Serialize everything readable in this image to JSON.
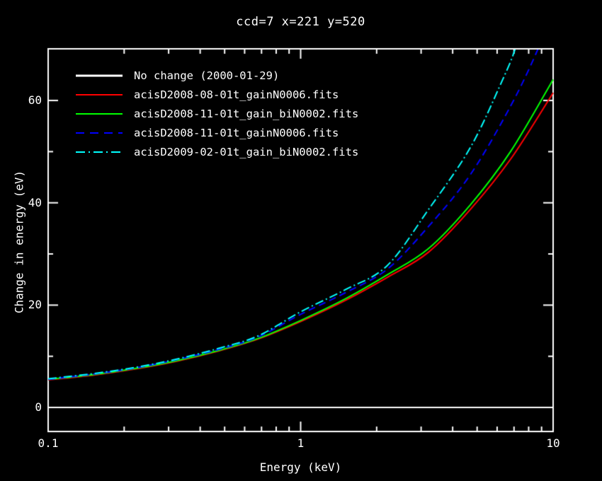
{
  "chart_data": {
    "type": "line",
    "title": "ccd=7 x=221 y=520",
    "xlabel": "Energy (keV)",
    "ylabel": "Change in energy (eV)",
    "xscale": "log",
    "xlim": [
      0.1,
      10
    ],
    "ylim": [
      -4.7,
      70.1
    ],
    "grid": false,
    "legend_position": "top-left-inside",
    "background_color": "#000000",
    "axis_color": "#ffffff",
    "xticks": [
      {
        "value": 0.1,
        "label": "0.1"
      },
      {
        "value": 1,
        "label": "1"
      },
      {
        "value": 10,
        "label": "10"
      }
    ],
    "xminor": [
      0.2,
      0.3,
      0.4,
      0.5,
      0.6,
      0.7,
      0.8,
      0.9,
      2,
      3,
      4,
      5,
      6,
      7,
      8,
      9
    ],
    "yticks": [
      {
        "value": 0,
        "label": "0"
      },
      {
        "value": 20,
        "label": "20"
      },
      {
        "value": 40,
        "label": "40"
      },
      {
        "value": 60,
        "label": "60"
      }
    ],
    "yminor": [
      10,
      30,
      50
    ],
    "series": [
      {
        "name": "No change (2000-01-29)",
        "color": "#ffffff",
        "style": "solid",
        "legend_line_width": 3,
        "x": [
          0.1,
          10
        ],
        "y": [
          0,
          0
        ]
      },
      {
        "name": "acisD2008-08-01t_gainN0006.fits",
        "color": "#ff0000",
        "style": "solid",
        "legend_line_width": 2,
        "x": [
          0.1,
          0.15,
          0.22,
          0.32,
          0.47,
          0.68,
          1.0,
          1.5,
          2.2,
          3.2,
          4.7,
          6.8,
          10
        ],
        "y": [
          5.4,
          6.3,
          7.5,
          9.0,
          11.0,
          13.4,
          16.8,
          20.9,
          25.4,
          30.3,
          38.7,
          48.6,
          61.5
        ]
      },
      {
        "name": "acisD2008-11-01t_gain_biN0002.fits",
        "color": "#00ff00",
        "style": "solid",
        "legend_line_width": 2,
        "x": [
          0.1,
          0.15,
          0.22,
          0.32,
          0.47,
          0.68,
          1.0,
          1.5,
          2.2,
          3.2,
          4.7,
          6.8,
          10
        ],
        "y": [
          5.5,
          6.4,
          7.6,
          9.1,
          11.1,
          13.5,
          17.0,
          21.2,
          25.9,
          31.0,
          39.6,
          50.1,
          64.1
        ]
      },
      {
        "name": "acisD2008-11-01t_gainN0006.fits",
        "color": "#0000ff",
        "style": "dashed",
        "legend_line_width": 2,
        "x": [
          0.1,
          0.15,
          0.22,
          0.32,
          0.47,
          0.68,
          1.0,
          1.5,
          2.2,
          3.2,
          4.7,
          6.8,
          8.7,
          10
        ],
        "y": [
          5.5,
          6.5,
          7.7,
          9.3,
          11.3,
          13.8,
          18.2,
          22.4,
          27.0,
          35.3,
          45.5,
          59.0,
          70.0,
          78.0
        ]
      },
      {
        "name": "acisD2009-02-01t_gain_biN0002.fits",
        "color": "#00ffff",
        "style": "dashdot",
        "legend_line_width": 2,
        "x": [
          0.1,
          0.15,
          0.22,
          0.32,
          0.47,
          0.68,
          1.0,
          1.5,
          2.2,
          3.2,
          4.7,
          6.3,
          7.1,
          8.0
        ],
        "y": [
          5.6,
          6.6,
          7.8,
          9.4,
          11.5,
          14.0,
          18.7,
          23.0,
          27.7,
          38.6,
          50.8,
          64.0,
          70.3,
          79.0
        ]
      }
    ]
  }
}
